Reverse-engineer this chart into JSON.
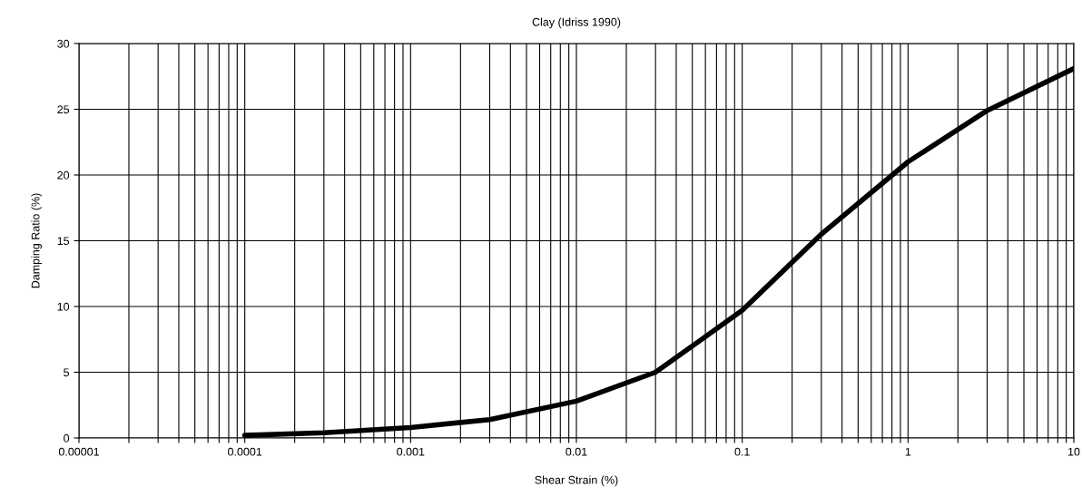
{
  "chart_data": {
    "type": "line",
    "title": "Clay (Idriss 1990)",
    "xlabel": "Shear Strain (%)",
    "ylabel": "Damping Ratio (%)",
    "log": "x",
    "xlim": [
      1e-05,
      10
    ],
    "ylim": [
      0,
      30
    ],
    "xticks": [
      {
        "value": 1e-05,
        "label": "0.00001"
      },
      {
        "value": 2e-05,
        "label": null
      },
      {
        "value": 3e-05,
        "label": null
      },
      {
        "value": 4e-05,
        "label": null
      },
      {
        "value": 5e-05,
        "label": null
      },
      {
        "value": 6e-05,
        "label": null
      },
      {
        "value": 7e-05,
        "label": null
      },
      {
        "value": 8e-05,
        "label": null
      },
      {
        "value": 9e-05,
        "label": null
      },
      {
        "value": 0.0001,
        "label": "0.0001"
      },
      {
        "value": 0.0002,
        "label": null
      },
      {
        "value": 0.0003,
        "label": null
      },
      {
        "value": 0.0004,
        "label": null
      },
      {
        "value": 0.0005,
        "label": null
      },
      {
        "value": 0.0006,
        "label": null
      },
      {
        "value": 0.0007,
        "label": null
      },
      {
        "value": 0.0008,
        "label": null
      },
      {
        "value": 0.0009,
        "label": null
      },
      {
        "value": 0.001,
        "label": "0.001"
      },
      {
        "value": 0.002,
        "label": null
      },
      {
        "value": 0.003,
        "label": null
      },
      {
        "value": 0.004,
        "label": null
      },
      {
        "value": 0.005,
        "label": null
      },
      {
        "value": 0.006,
        "label": null
      },
      {
        "value": 0.007,
        "label": null
      },
      {
        "value": 0.008,
        "label": null
      },
      {
        "value": 0.009,
        "label": null
      },
      {
        "value": 0.01,
        "label": "0.01"
      },
      {
        "value": 0.02,
        "label": null
      },
      {
        "value": 0.03,
        "label": null
      },
      {
        "value": 0.04,
        "label": null
      },
      {
        "value": 0.05,
        "label": null
      },
      {
        "value": 0.06,
        "label": null
      },
      {
        "value": 0.07,
        "label": null
      },
      {
        "value": 0.08,
        "label": null
      },
      {
        "value": 0.09,
        "label": null
      },
      {
        "value": 0.1,
        "label": "0.1"
      },
      {
        "value": 0.2,
        "label": null
      },
      {
        "value": 0.3,
        "label": null
      },
      {
        "value": 0.4,
        "label": null
      },
      {
        "value": 0.5,
        "label": null
      },
      {
        "value": 0.6,
        "label": null
      },
      {
        "value": 0.7,
        "label": null
      },
      {
        "value": 0.8,
        "label": null
      },
      {
        "value": 0.9,
        "label": null
      },
      {
        "value": 1,
        "label": "1"
      },
      {
        "value": 2,
        "label": null
      },
      {
        "value": 3,
        "label": null
      },
      {
        "value": 4,
        "label": null
      },
      {
        "value": 5,
        "label": null
      },
      {
        "value": 6,
        "label": null
      },
      {
        "value": 7,
        "label": null
      },
      {
        "value": 8,
        "label": null
      },
      {
        "value": 9,
        "label": null
      },
      {
        "value": 10,
        "label": "10"
      }
    ],
    "yticks": [
      0,
      5,
      10,
      15,
      20,
      25,
      30
    ],
    "grid": true,
    "marker": "none",
    "line_style": "solid",
    "series": [
      {
        "color": "#000000",
        "x": [
          0.0001,
          0.0003,
          0.001,
          0.003,
          0.01,
          0.03,
          0.1,
          0.3,
          1,
          3,
          10
        ],
        "values": [
          0.2,
          0.4,
          0.8,
          1.4,
          2.8,
          5.0,
          9.7,
          15.5,
          21.0,
          24.9,
          28.1
        ]
      }
    ]
  }
}
